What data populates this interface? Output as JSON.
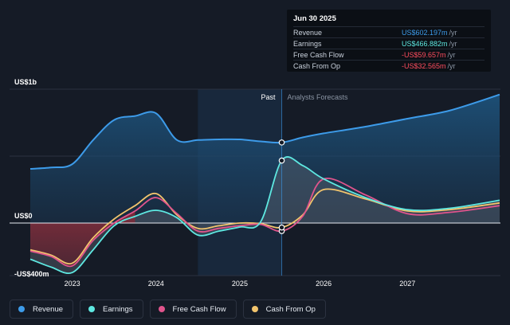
{
  "chart_data": {
    "type": "area",
    "y_top_label": "US$1b",
    "y_zero_label": "US$0",
    "y_bottom_label": "-US$400m",
    "ylim": [
      -400,
      1000
    ],
    "xlim": [
      2022.5,
      2028.1
    ],
    "x_ticks": [
      2023,
      2024,
      2025,
      2026,
      2027
    ],
    "x_tick_labels": [
      "2023",
      "2024",
      "2025",
      "2026",
      "2027"
    ],
    "past_label": "Past",
    "forecast_label": "Analysts Forecasts",
    "past_shade_range": [
      2024.5,
      2025.5
    ],
    "divider_x": 2025.5,
    "series": [
      {
        "name": "Revenue",
        "color": "#3d9be9",
        "x": [
          2022.5,
          2022.75,
          2023.0,
          2023.25,
          2023.5,
          2023.75,
          2024.0,
          2024.25,
          2024.5,
          2024.75,
          2025.0,
          2025.25,
          2025.5,
          2025.75,
          2026.0,
          2026.5,
          2027.0,
          2027.5,
          2028.1
        ],
        "values": [
          405,
          415,
          440,
          620,
          770,
          800,
          820,
          620,
          620,
          625,
          625,
          610,
          602,
          640,
          670,
          720,
          780,
          840,
          960
        ]
      },
      {
        "name": "Earnings",
        "color": "#5ee8e1",
        "x": [
          2022.5,
          2022.75,
          2023.0,
          2023.25,
          2023.5,
          2023.75,
          2024.0,
          2024.25,
          2024.5,
          2024.75,
          2025.0,
          2025.25,
          2025.5,
          2025.75,
          2026.0,
          2026.5,
          2027.0,
          2027.5,
          2028.1
        ],
        "values": [
          -270,
          -330,
          -370,
          -200,
          -20,
          50,
          95,
          40,
          -90,
          -60,
          -30,
          10,
          467,
          430,
          330,
          190,
          100,
          110,
          170
        ]
      },
      {
        "name": "Free Cash Flow",
        "color": "#e0548c",
        "x": [
          2022.5,
          2022.75,
          2023.0,
          2023.25,
          2023.5,
          2023.75,
          2024.0,
          2024.25,
          2024.5,
          2024.75,
          2025.0,
          2025.25,
          2025.5,
          2025.75,
          2026.0,
          2026.5,
          2027.0,
          2027.5,
          2028.1
        ],
        "values": [
          -210,
          -250,
          -320,
          -130,
          0,
          90,
          190,
          70,
          -60,
          -40,
          -20,
          -10,
          -60,
          50,
          330,
          210,
          70,
          80,
          130
        ]
      },
      {
        "name": "Cash From Op",
        "color": "#f2c46d",
        "x": [
          2022.5,
          2022.75,
          2023.0,
          2023.25,
          2023.5,
          2023.75,
          2024.0,
          2024.25,
          2024.5,
          2024.75,
          2025.0,
          2025.25,
          2025.5,
          2025.75,
          2026.0,
          2026.5,
          2027.0,
          2027.5,
          2028.1
        ],
        "values": [
          -200,
          -240,
          -300,
          -110,
          30,
          130,
          220,
          60,
          -40,
          -20,
          0,
          -5,
          -33,
          60,
          250,
          180,
          90,
          100,
          150
        ]
      }
    ],
    "tooltip": {
      "date": "Jun 30 2025",
      "rows": [
        {
          "label": "Revenue",
          "value": "US$602.197m",
          "unit": "/yr",
          "color": "#3d9be9"
        },
        {
          "label": "Earnings",
          "value": "US$466.882m",
          "unit": "/yr",
          "color": "#5ee8e1"
        },
        {
          "label": "Free Cash Flow",
          "value": "-US$59.657m",
          "unit": "/yr",
          "color": "#ff4d5e"
        },
        {
          "label": "Cash From Op",
          "value": "-US$32.565m",
          "unit": "/yr",
          "color": "#ff4d5e"
        }
      ]
    }
  },
  "legend": [
    {
      "label": "Revenue",
      "color": "#3d9be9"
    },
    {
      "label": "Earnings",
      "color": "#5ee8e1"
    },
    {
      "label": "Free Cash Flow",
      "color": "#e0548c"
    },
    {
      "label": "Cash From Op",
      "color": "#f2c46d"
    }
  ]
}
